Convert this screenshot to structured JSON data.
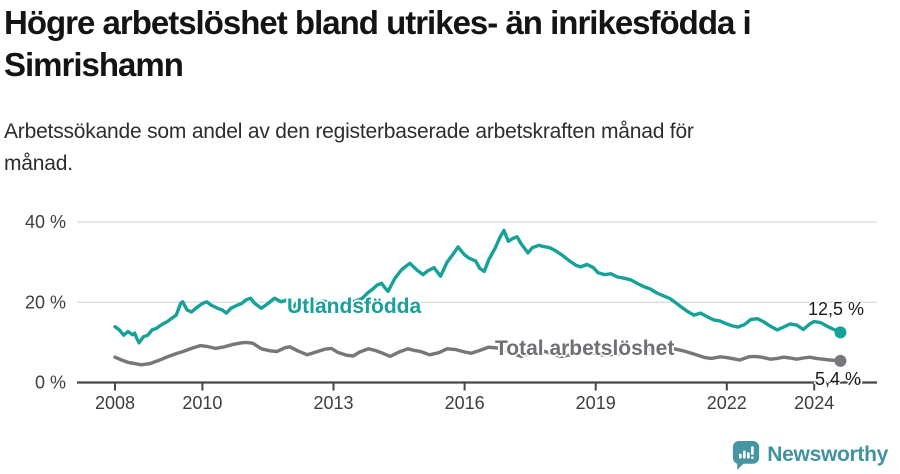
{
  "header": {
    "title": "Högre arbetslöshet bland utrikes- än inrikesfödda i Simrishamn",
    "title_lines": [
      "Högre arbetslöshet bland utrikes- än inrikesfödda i",
      "Simrishamn"
    ],
    "subtitle": "Arbetssökande som andel av den registerbaserade arbetskraften månad för månad.",
    "subtitle_lines": [
      "Arbetssökande som andel av den registerbaserade arbetskraften månad för",
      "månad."
    ]
  },
  "footer": {
    "brand": "Newsworthy",
    "logo_icon": "newsworthy-speech-bubble-bar-chart-icon"
  },
  "colors": {
    "series_foreign_born": "#16a199",
    "series_total": "#76767b",
    "axis": "#47474a",
    "gridline": "#d9d9d9",
    "tick_text": "#3d3d3d",
    "logo_teal": "#4496a2"
  },
  "chart_data": {
    "type": "line",
    "title": "Högre arbetslöshet bland utrikes- än inrikesfödda i Simrishamn",
    "subtitle": "Arbetssökande som andel av den registerbaserade arbetskraften månad för månad.",
    "xlabel": "",
    "ylabel": "",
    "x_unit": "year (monthly observations)",
    "y_unit": "percent of registered labour force",
    "xlim": [
      2007.9,
      2025.4
    ],
    "ylim": [
      0,
      42
    ],
    "grid": "horizontal",
    "legend_position": "inline-labels-on-lines",
    "y_ticks": [
      {
        "value": 0,
        "label": "0 %"
      },
      {
        "value": 20,
        "label": "20 %"
      },
      {
        "value": 40,
        "label": "40 %"
      }
    ],
    "x_ticks": [
      {
        "value": 2008,
        "label": "2008"
      },
      {
        "value": 2010,
        "label": "2010"
      },
      {
        "value": 2013,
        "label": "2013"
      },
      {
        "value": 2016,
        "label": "2016"
      },
      {
        "value": 2019,
        "label": "2019"
      },
      {
        "value": 2022,
        "label": "2022"
      },
      {
        "value": 2024,
        "label": "2024"
      }
    ],
    "series": [
      {
        "name": "Utlandsfödda",
        "label": "Utlandsfödda",
        "color": "#16a199",
        "end_label": "12,5 %",
        "end_value": 12.5,
        "points": [
          [
            2008.0,
            13.9
          ],
          [
            2008.1,
            13.1
          ],
          [
            2008.2,
            11.8
          ],
          [
            2008.3,
            12.7
          ],
          [
            2008.4,
            11.9
          ],
          [
            2008.45,
            12.3
          ],
          [
            2008.5,
            11.0
          ],
          [
            2008.55,
            9.9
          ],
          [
            2008.65,
            11.4
          ],
          [
            2008.75,
            11.8
          ],
          [
            2008.85,
            13.1
          ],
          [
            2008.95,
            13.5
          ],
          [
            2009.05,
            14.3
          ],
          [
            2009.2,
            15.2
          ],
          [
            2009.3,
            16.0
          ],
          [
            2009.4,
            16.8
          ],
          [
            2009.5,
            19.7
          ],
          [
            2009.55,
            20.1
          ],
          [
            2009.65,
            18.1
          ],
          [
            2009.75,
            17.6
          ],
          [
            2009.85,
            18.5
          ],
          [
            2010.0,
            19.7
          ],
          [
            2010.1,
            20.1
          ],
          [
            2010.2,
            19.3
          ],
          [
            2010.35,
            18.5
          ],
          [
            2010.45,
            18.1
          ],
          [
            2010.55,
            17.3
          ],
          [
            2010.65,
            18.5
          ],
          [
            2010.8,
            19.3
          ],
          [
            2010.9,
            19.7
          ],
          [
            2011.0,
            20.6
          ],
          [
            2011.1,
            21.0
          ],
          [
            2011.2,
            19.7
          ],
          [
            2011.35,
            18.5
          ],
          [
            2011.5,
            19.7
          ],
          [
            2011.65,
            21.0
          ],
          [
            2011.8,
            20.1
          ],
          [
            2011.95,
            20.6
          ],
          [
            2012.05,
            18.3
          ],
          [
            2012.15,
            19.8
          ],
          [
            2012.3,
            19.6
          ],
          [
            2012.45,
            19.3
          ],
          [
            2012.6,
            19.9
          ],
          [
            2012.75,
            20.3
          ],
          [
            2012.9,
            20.0
          ],
          [
            2013.05,
            19.6
          ],
          [
            2013.2,
            19.3
          ],
          [
            2013.35,
            19.8
          ],
          [
            2013.5,
            20.3
          ],
          [
            2013.65,
            20.9
          ],
          [
            2013.8,
            22.5
          ],
          [
            2013.9,
            23.3
          ],
          [
            2014.0,
            24.3
          ],
          [
            2014.1,
            24.7
          ],
          [
            2014.2,
            23.3
          ],
          [
            2014.25,
            22.7
          ],
          [
            2014.4,
            25.9
          ],
          [
            2014.55,
            28.0
          ],
          [
            2014.65,
            28.9
          ],
          [
            2014.75,
            29.7
          ],
          [
            2014.9,
            28.1
          ],
          [
            2015.05,
            26.9
          ],
          [
            2015.15,
            27.8
          ],
          [
            2015.3,
            28.6
          ],
          [
            2015.45,
            26.5
          ],
          [
            2015.6,
            30.0
          ],
          [
            2015.75,
            32.2
          ],
          [
            2015.85,
            33.8
          ],
          [
            2016.0,
            31.8
          ],
          [
            2016.1,
            31.0
          ],
          [
            2016.25,
            30.3
          ],
          [
            2016.35,
            28.4
          ],
          [
            2016.45,
            27.7
          ],
          [
            2016.55,
            30.5
          ],
          [
            2016.7,
            33.5
          ],
          [
            2016.8,
            36.0
          ],
          [
            2016.9,
            37.9
          ],
          [
            2017.0,
            35.2
          ],
          [
            2017.1,
            35.9
          ],
          [
            2017.2,
            36.3
          ],
          [
            2017.3,
            34.5
          ],
          [
            2017.45,
            32.3
          ],
          [
            2017.55,
            33.6
          ],
          [
            2017.7,
            34.2
          ],
          [
            2017.8,
            33.9
          ],
          [
            2017.95,
            33.6
          ],
          [
            2018.1,
            32.7
          ],
          [
            2018.25,
            31.6
          ],
          [
            2018.4,
            30.3
          ],
          [
            2018.55,
            29.2
          ],
          [
            2018.65,
            28.8
          ],
          [
            2018.8,
            29.4
          ],
          [
            2018.95,
            28.6
          ],
          [
            2019.05,
            27.4
          ],
          [
            2019.2,
            26.9
          ],
          [
            2019.35,
            27.1
          ],
          [
            2019.5,
            26.3
          ],
          [
            2019.65,
            26.0
          ],
          [
            2019.8,
            25.6
          ],
          [
            2019.95,
            24.7
          ],
          [
            2020.1,
            23.9
          ],
          [
            2020.25,
            23.3
          ],
          [
            2020.4,
            22.3
          ],
          [
            2020.55,
            21.6
          ],
          [
            2020.7,
            20.9
          ],
          [
            2020.8,
            20.1
          ],
          [
            2020.95,
            18.9
          ],
          [
            2021.1,
            17.7
          ],
          [
            2021.25,
            16.8
          ],
          [
            2021.4,
            17.3
          ],
          [
            2021.55,
            16.4
          ],
          [
            2021.7,
            15.6
          ],
          [
            2021.85,
            15.3
          ],
          [
            2022.0,
            14.6
          ],
          [
            2022.1,
            14.2
          ],
          [
            2022.25,
            13.8
          ],
          [
            2022.4,
            14.4
          ],
          [
            2022.55,
            15.7
          ],
          [
            2022.7,
            15.9
          ],
          [
            2022.85,
            15.1
          ],
          [
            2023.0,
            14.0
          ],
          [
            2023.15,
            13.1
          ],
          [
            2023.3,
            13.8
          ],
          [
            2023.45,
            14.6
          ],
          [
            2023.6,
            14.3
          ],
          [
            2023.75,
            13.2
          ],
          [
            2023.9,
            14.6
          ],
          [
            2024.0,
            15.2
          ],
          [
            2024.15,
            14.9
          ],
          [
            2024.3,
            14.0
          ],
          [
            2024.45,
            13.2
          ],
          [
            2024.6,
            12.5
          ]
        ]
      },
      {
        "name": "Total arbetslöshet",
        "label": "Total arbetslöshet",
        "color": "#76767b",
        "end_label": "5,4 %",
        "end_value": 5.4,
        "points": [
          [
            2008.0,
            6.3
          ],
          [
            2008.15,
            5.6
          ],
          [
            2008.3,
            5.0
          ],
          [
            2008.45,
            4.7
          ],
          [
            2008.6,
            4.4
          ],
          [
            2008.8,
            4.7
          ],
          [
            2009.0,
            5.5
          ],
          [
            2009.2,
            6.4
          ],
          [
            2009.4,
            7.2
          ],
          [
            2009.55,
            7.7
          ],
          [
            2009.75,
            8.5
          ],
          [
            2009.95,
            9.2
          ],
          [
            2010.1,
            9.0
          ],
          [
            2010.3,
            8.5
          ],
          [
            2010.5,
            8.9
          ],
          [
            2010.7,
            9.5
          ],
          [
            2010.9,
            9.9
          ],
          [
            2011.0,
            10.0
          ],
          [
            2011.15,
            9.8
          ],
          [
            2011.35,
            8.4
          ],
          [
            2011.55,
            7.9
          ],
          [
            2011.7,
            7.7
          ],
          [
            2011.9,
            8.7
          ],
          [
            2012.0,
            8.9
          ],
          [
            2012.2,
            7.8
          ],
          [
            2012.4,
            6.9
          ],
          [
            2012.6,
            7.6
          ],
          [
            2012.8,
            8.3
          ],
          [
            2012.95,
            8.5
          ],
          [
            2013.1,
            7.5
          ],
          [
            2013.3,
            6.8
          ],
          [
            2013.45,
            6.6
          ],
          [
            2013.6,
            7.6
          ],
          [
            2013.8,
            8.4
          ],
          [
            2013.95,
            8.0
          ],
          [
            2014.1,
            7.4
          ],
          [
            2014.3,
            6.5
          ],
          [
            2014.5,
            7.6
          ],
          [
            2014.7,
            8.4
          ],
          [
            2014.85,
            8.0
          ],
          [
            2015.0,
            7.7
          ],
          [
            2015.2,
            6.9
          ],
          [
            2015.4,
            7.4
          ],
          [
            2015.6,
            8.4
          ],
          [
            2015.8,
            8.2
          ],
          [
            2016.0,
            7.6
          ],
          [
            2016.15,
            7.3
          ],
          [
            2016.35,
            8.0
          ],
          [
            2016.55,
            8.8
          ],
          [
            2016.75,
            8.6
          ],
          [
            2016.95,
            7.9
          ],
          [
            2017.1,
            7.2
          ],
          [
            2017.3,
            6.5
          ],
          [
            2017.5,
            7.3
          ],
          [
            2017.7,
            8.0
          ],
          [
            2017.85,
            7.7
          ],
          [
            2018.0,
            7.2
          ],
          [
            2018.2,
            6.5
          ],
          [
            2018.4,
            6.9
          ],
          [
            2018.6,
            7.4
          ],
          [
            2018.8,
            7.7
          ],
          [
            2019.0,
            7.2
          ],
          [
            2019.2,
            6.8
          ],
          [
            2019.4,
            7.0
          ],
          [
            2019.6,
            7.3
          ],
          [
            2019.8,
            7.6
          ],
          [
            2020.0,
            7.8
          ],
          [
            2020.2,
            8.1
          ],
          [
            2020.4,
            8.5
          ],
          [
            2020.6,
            8.7
          ],
          [
            2020.8,
            8.4
          ],
          [
            2021.0,
            7.9
          ],
          [
            2021.15,
            7.4
          ],
          [
            2021.3,
            6.9
          ],
          [
            2021.5,
            6.2
          ],
          [
            2021.65,
            6.0
          ],
          [
            2021.85,
            6.4
          ],
          [
            2022.0,
            6.2
          ],
          [
            2022.15,
            5.9
          ],
          [
            2022.3,
            5.6
          ],
          [
            2022.5,
            6.4
          ],
          [
            2022.65,
            6.5
          ],
          [
            2022.8,
            6.3
          ],
          [
            2023.0,
            5.8
          ],
          [
            2023.15,
            6.0
          ],
          [
            2023.3,
            6.3
          ],
          [
            2023.45,
            6.1
          ],
          [
            2023.6,
            5.8
          ],
          [
            2023.75,
            6.1
          ],
          [
            2023.9,
            6.3
          ],
          [
            2024.05,
            6.0
          ],
          [
            2024.2,
            5.8
          ],
          [
            2024.35,
            5.6
          ],
          [
            2024.5,
            5.5
          ],
          [
            2024.6,
            5.4
          ]
        ]
      }
    ]
  }
}
